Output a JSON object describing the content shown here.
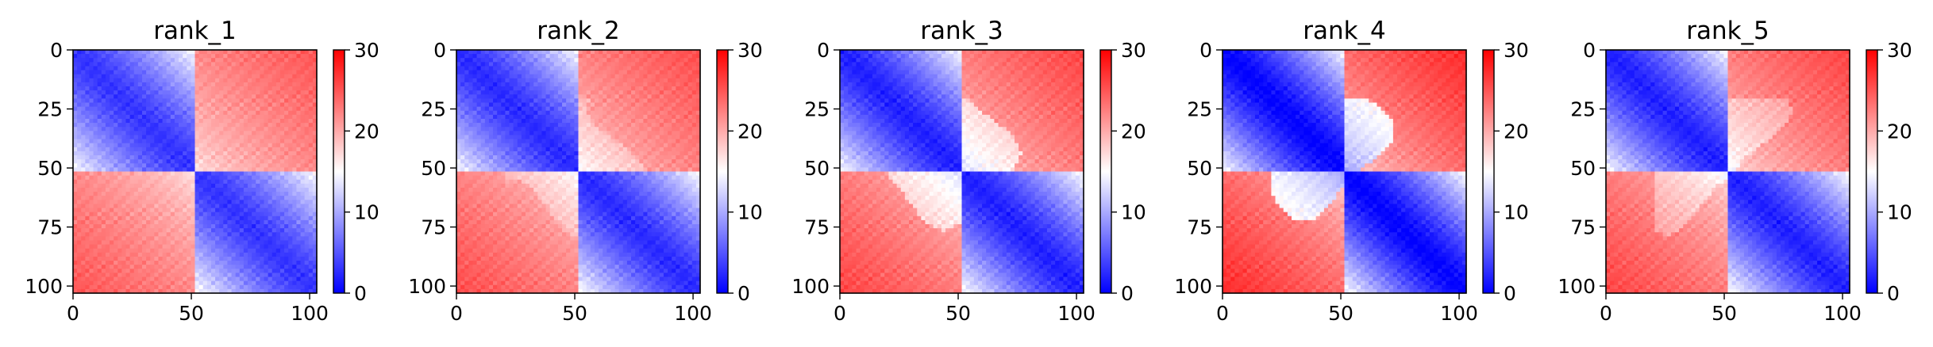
{
  "chart_data": [
    {
      "type": "heatmap",
      "title": "rank_1",
      "x_ticks": [
        "0",
        "50",
        "100"
      ],
      "y_ticks": [
        "0",
        "25",
        "50",
        "75",
        "100"
      ],
      "colorbar": {
        "cmap": "bwr",
        "vmin": 0,
        "vmax": 30,
        "ticks": [
          "0",
          "10",
          "20",
          "30"
        ]
      },
      "matrix_size": 103,
      "domain_boundary": 52,
      "contrast": 1.0,
      "corner_shape": 0.0
    },
    {
      "type": "heatmap",
      "title": "rank_2",
      "x_ticks": [
        "0",
        "50",
        "100"
      ],
      "y_ticks": [
        "0",
        "25",
        "50",
        "75",
        "100"
      ],
      "colorbar": {
        "cmap": "bwr",
        "vmin": 0,
        "vmax": 30,
        "ticks": [
          "0",
          "10",
          "20",
          "30"
        ]
      },
      "matrix_size": 103,
      "domain_boundary": 52,
      "contrast": 1.05,
      "corner_shape": 0.3
    },
    {
      "type": "heatmap",
      "title": "rank_3",
      "x_ticks": [
        "0",
        "50",
        "100"
      ],
      "y_ticks": [
        "0",
        "25",
        "50",
        "75",
        "100"
      ],
      "colorbar": {
        "cmap": "bwr",
        "vmin": 0,
        "vmax": 30,
        "ticks": [
          "0",
          "10",
          "20",
          "30"
        ]
      },
      "matrix_size": 103,
      "domain_boundary": 52,
      "contrast": 1.1,
      "corner_shape": 0.6
    },
    {
      "type": "heatmap",
      "title": "rank_4",
      "x_ticks": [
        "0",
        "50",
        "100"
      ],
      "y_ticks": [
        "0",
        "25",
        "50",
        "75",
        "100"
      ],
      "colorbar": {
        "cmap": "bwr",
        "vmin": 0,
        "vmax": 30,
        "ticks": [
          "0",
          "10",
          "20",
          "30"
        ]
      },
      "matrix_size": 103,
      "domain_boundary": 52,
      "contrast": 1.25,
      "corner_shape": 1.0
    },
    {
      "type": "heatmap",
      "title": "rank_5",
      "x_ticks": [
        "0",
        "50",
        "100"
      ],
      "y_ticks": [
        "0",
        "25",
        "50",
        "75",
        "100"
      ],
      "colorbar": {
        "cmap": "bwr",
        "vmin": 0,
        "vmax": 30,
        "ticks": [
          "0",
          "10",
          "20",
          "30"
        ]
      },
      "matrix_size": 103,
      "domain_boundary": 52,
      "contrast": 1.1,
      "corner_shape": 0.4
    }
  ]
}
